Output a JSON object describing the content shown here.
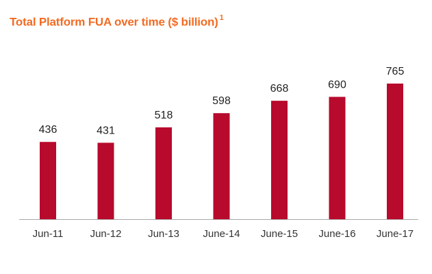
{
  "colors": {
    "title": "#f26b22",
    "bar": "#b70a2c",
    "axis": "#a8a8a8",
    "label": "#222222",
    "tick": "#333333"
  },
  "chart_data": {
    "type": "bar",
    "title": "Total Platform FUA over time ($ billion)",
    "title_footnote": "1",
    "xlabel": "",
    "ylabel": "",
    "categories": [
      "Jun-11",
      "Jun-12",
      "Jun-13",
      "June-14",
      "June-15",
      "June-16",
      "June-17"
    ],
    "values": [
      436,
      431,
      518,
      598,
      668,
      690,
      765
    ],
    "ylim": [
      0,
      800
    ],
    "grid": false,
    "legend": "none",
    "data_labels": true
  }
}
